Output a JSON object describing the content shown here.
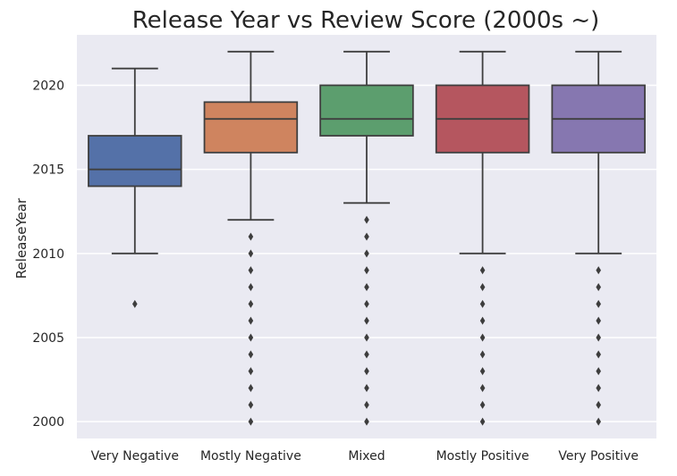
{
  "chart_data": {
    "type": "box",
    "title": "Release Year vs Review Score (2000s ~)",
    "xlabel": "",
    "ylabel": "ReleaseYear",
    "ylim": [
      1999,
      2023
    ],
    "yticks": [
      2000,
      2005,
      2010,
      2015,
      2020
    ],
    "grid": true,
    "categories": [
      "Very Negative",
      "Mostly Negative",
      "Mixed",
      "Mostly Positive",
      "Very Positive"
    ],
    "boxes": [
      {
        "category": "Very Negative",
        "color": "#5471a8",
        "whisker_low": 2010,
        "q1": 2014,
        "median": 2015,
        "q3": 2017,
        "whisker_high": 2021,
        "outliers": [
          2007
        ]
      },
      {
        "category": "Mostly Negative",
        "color": "#cf845f",
        "whisker_low": 2012,
        "q1": 2016,
        "median": 2018,
        "q3": 2019,
        "whisker_high": 2022,
        "outliers": [
          2000,
          2001,
          2002,
          2003,
          2004,
          2005,
          2006,
          2007,
          2008,
          2009,
          2010,
          2011
        ]
      },
      {
        "category": "Mixed",
        "color": "#5c9e6e",
        "whisker_low": 2013,
        "q1": 2017,
        "median": 2018,
        "q3": 2020,
        "whisker_high": 2022,
        "outliers": [
          2000,
          2001,
          2002,
          2003,
          2004,
          2005,
          2006,
          2007,
          2008,
          2009,
          2010,
          2011,
          2012
        ]
      },
      {
        "category": "Mostly Positive",
        "color": "#b5565f",
        "whisker_low": 2010,
        "q1": 2016,
        "median": 2018,
        "q3": 2020,
        "whisker_high": 2022,
        "outliers": [
          2000,
          2001,
          2002,
          2003,
          2004,
          2005,
          2006,
          2007,
          2008,
          2009
        ]
      },
      {
        "category": "Very Positive",
        "color": "#8677b0",
        "whisker_low": 2010,
        "q1": 2016,
        "median": 2018,
        "q3": 2020,
        "whisker_high": 2022,
        "outliers": [
          2000,
          2001,
          2002,
          2003,
          2004,
          2005,
          2006,
          2007,
          2008,
          2009
        ]
      }
    ],
    "colors": {
      "plot_background": "#eaeaf2",
      "grid": "#ffffff",
      "line": "#3f3f3f",
      "text": "#262626"
    }
  }
}
